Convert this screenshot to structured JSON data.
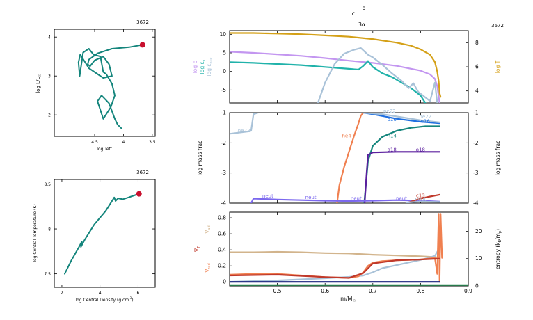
{
  "header": {
    "model_number": "3672",
    "c_label": "c",
    "o_label": "o",
    "zone_label": "3α"
  },
  "colors": {
    "teal": "#14857c",
    "marker": "#c8102e",
    "lavender": "#c396f0",
    "sea": "#20b2aa",
    "lightblue": "#a9c2d8",
    "gold": "#d4a017",
    "blue": "#1f6fe0",
    "purple": "#5b1f9e",
    "violet": "#7b68ee",
    "salmon": "#f08050",
    "red": "#c0392b",
    "tan": "#d2b48c",
    "navy": "#1a237e",
    "green": "#2e8b57"
  },
  "chart_data": [
    {
      "id": "hr",
      "type": "line",
      "title": "3672",
      "xlabel": "log Teff",
      "ylabel": "log L/Lsun",
      "xlim": [
        5.2,
        3.45
      ],
      "ylim": [
        1.45,
        4.2
      ],
      "xticks": [
        4.5,
        4,
        3.5
      ],
      "xtick_labels": [
        "4.5",
        "4",
        "3.5"
      ],
      "yticks": [
        2,
        3,
        4
      ],
      "ytick_labels": [
        "2",
        "3",
        "4"
      ],
      "series": [
        {
          "color": "teal",
          "x": [
            3.67,
            3.9,
            4.2,
            4.45,
            4.6,
            4.62,
            4.58,
            4.5,
            4.35,
            4.25,
            4.2,
            4.35,
            4.6,
            4.75,
            4.78,
            4.76,
            4.7,
            4.6,
            4.52,
            4.4,
            4.35,
            4.3,
            4.2,
            4.15,
            4.22,
            4.35,
            4.45,
            4.38,
            4.25,
            4.15,
            4.1,
            4.03
          ],
          "y": [
            3.8,
            3.74,
            3.7,
            3.58,
            3.42,
            3.3,
            3.25,
            3.4,
            3.5,
            3.3,
            3.0,
            2.95,
            3.2,
            3.55,
            3.35,
            3.0,
            3.6,
            3.7,
            3.55,
            3.5,
            3.1,
            3.05,
            2.8,
            2.5,
            2.2,
            1.9,
            2.35,
            2.5,
            2.3,
            1.9,
            1.75,
            1.65
          ]
        }
      ],
      "marker": {
        "x": 3.67,
        "y": 3.8
      }
    },
    {
      "id": "central",
      "type": "line",
      "title": "3672",
      "xlabel": "log Central Density (g cm-3)",
      "ylabel": "log Central Temperature (K)",
      "xlim": [
        1.6,
        6.9
      ],
      "ylim": [
        7.35,
        8.55
      ],
      "xticks": [
        2,
        4,
        6
      ],
      "xtick_labels": [
        "2",
        "4",
        "6"
      ],
      "yticks": [
        7.5,
        8,
        8.5
      ],
      "ytick_labels": [
        "7.5",
        "8",
        "8.5"
      ],
      "series": [
        {
          "color": "teal",
          "x": [
            2.15,
            2.5,
            2.9,
            3.05,
            3.0,
            3.2,
            3.7,
            4.3,
            4.6,
            4.75,
            4.82,
            4.95,
            5.2,
            5.5,
            5.9,
            6.05
          ],
          "y": [
            7.5,
            7.65,
            7.8,
            7.86,
            7.8,
            7.88,
            8.05,
            8.2,
            8.3,
            8.35,
            8.31,
            8.34,
            8.33,
            8.35,
            8.38,
            8.39
          ]
        }
      ],
      "marker": {
        "x": 6.05,
        "y": 8.39
      }
    },
    {
      "id": "profile-top",
      "type": "line",
      "title": "3672",
      "xlim": [
        0.4,
        0.9
      ],
      "ylim": [
        -8.5,
        11
      ],
      "yticks": [
        -5,
        0,
        5,
        10
      ],
      "ytick_labels": [
        "-5",
        "0",
        "5",
        "10"
      ],
      "ylabel_left": [
        "log ρ",
        "log εν",
        "log εnuc"
      ],
      "ylabel_right": "log T",
      "ylim_right": [
        3,
        9
      ],
      "yticks_right": [
        4,
        6,
        8
      ],
      "ytick_labels_right": [
        "4",
        "6",
        "8"
      ],
      "series": [
        {
          "name": "log ρ",
          "color": "lavender",
          "x": [
            0.4,
            0.45,
            0.5,
            0.55,
            0.6,
            0.65,
            0.7,
            0.75,
            0.8,
            0.82,
            0.83,
            0.835,
            0.84
          ],
          "y": [
            5.3,
            5.0,
            4.6,
            4.2,
            3.6,
            2.9,
            2.3,
            1.5,
            0.2,
            -0.8,
            -2.0,
            -4.0,
            -8.5
          ]
        },
        {
          "name": "log εν",
          "color": "sea",
          "x": [
            0.4,
            0.45,
            0.5,
            0.55,
            0.6,
            0.65,
            0.67,
            0.68,
            0.69,
            0.7,
            0.72,
            0.74,
            0.76,
            0.78,
            0.8,
            0.81
          ],
          "y": [
            2.5,
            2.3,
            2.0,
            1.7,
            1.2,
            0.7,
            0.5,
            1.5,
            2.8,
            1.2,
            -0.5,
            -1.5,
            -3.0,
            -4.5,
            -6.5,
            -8.5
          ]
        },
        {
          "name": "log εnuc",
          "color": "lightblue",
          "x": [
            0.585,
            0.6,
            0.62,
            0.64,
            0.66,
            0.675,
            0.69,
            0.7,
            0.72,
            0.74,
            0.76,
            0.775,
            0.785,
            0.795,
            0.81,
            0.82,
            0.83,
            0.835
          ],
          "y": [
            -8.5,
            -3.0,
            2.0,
            4.8,
            5.8,
            6.3,
            4.5,
            3.8,
            1.8,
            -0.5,
            -2.5,
            -4.5,
            -3.2,
            -5.5,
            -7.0,
            -8.0,
            -3.0,
            -8.5
          ]
        },
        {
          "name": "log T",
          "axis": "right",
          "color": "gold",
          "x": [
            0.4,
            0.45,
            0.5,
            0.55,
            0.6,
            0.65,
            0.7,
            0.75,
            0.78,
            0.8,
            0.82,
            0.83,
            0.835,
            0.838,
            0.84,
            0.842
          ],
          "y": [
            8.8,
            8.8,
            8.75,
            8.7,
            8.6,
            8.5,
            8.3,
            8.0,
            7.75,
            7.45,
            7.0,
            6.4,
            5.6,
            4.8,
            3.8,
            3.5
          ]
        }
      ]
    },
    {
      "id": "profile-mid",
      "type": "line",
      "xlim": [
        0.4,
        0.9
      ],
      "ylim": [
        -4,
        -1
      ],
      "yticks": [
        -4,
        -3,
        -2,
        -1
      ],
      "ytick_labels": [
        "-4",
        "-3",
        "-2",
        "-1"
      ],
      "ylabel_left": "log mass frac",
      "ylabel_right": "log mass frac",
      "series": [
        {
          "name": "ne22",
          "color": "lightblue",
          "x": [
            0.4,
            0.44,
            0.445,
            0.45,
            0.46
          ],
          "y": [
            -1.7,
            -1.62,
            -1.6,
            -1.05,
            -1.0
          ]
        },
        {
          "name": "he4",
          "color": "salmon",
          "x": [
            0.625,
            0.63,
            0.64,
            0.65,
            0.66,
            0.67,
            0.675,
            0.68
          ],
          "y": [
            -4.0,
            -3.4,
            -2.8,
            -2.3,
            -1.8,
            -1.35,
            -1.1,
            -1.0
          ]
        },
        {
          "name": "n14",
          "color": "teal",
          "x": [
            0.682,
            0.69,
            0.7,
            0.72,
            0.75,
            0.78,
            0.81,
            0.84
          ],
          "y": [
            -4.0,
            -2.6,
            -2.1,
            -1.8,
            -1.6,
            -1.5,
            -1.45,
            -1.45
          ]
        },
        {
          "name": "o18",
          "color": "purple",
          "x": [
            0.683,
            0.687,
            0.69,
            0.7,
            0.75,
            0.84
          ],
          "y": [
            -4.0,
            -3.0,
            -2.4,
            -2.32,
            -2.3,
            -2.3
          ]
        },
        {
          "name": "o16",
          "color": "blue",
          "x": [
            0.68,
            0.7,
            0.75,
            0.8,
            0.84
          ],
          "y": [
            -1.0,
            -1.05,
            -1.2,
            -1.3,
            -1.35
          ]
        },
        {
          "name": "ne22",
          "color": "lightblue",
          "x": [
            0.68,
            0.72,
            0.76,
            0.8,
            0.84
          ],
          "y": [
            -1.0,
            -1.05,
            -1.15,
            -1.25,
            -1.32
          ]
        },
        {
          "name": "neut",
          "color": "violet",
          "x": [
            0.445,
            0.45,
            0.5,
            0.55,
            0.6,
            0.65,
            0.7,
            0.75,
            0.8,
            0.84
          ],
          "y": [
            -4.0,
            -3.85,
            -3.88,
            -3.9,
            -3.92,
            -3.93,
            -3.92,
            -3.9,
            -3.92,
            -3.95
          ]
        },
        {
          "name": "c13",
          "color": "red",
          "x": [
            0.77,
            0.8,
            0.82,
            0.84
          ],
          "y": [
            -4.0,
            -3.85,
            -3.78,
            -3.72
          ]
        },
        {
          "name": "neut",
          "color": "lightblue",
          "x": [
            0.77,
            0.8,
            0.84
          ],
          "y": [
            -3.98,
            -3.95,
            -3.96
          ]
        }
      ],
      "labels": [
        {
          "text": "ne22",
          "x": 0.43,
          "y": -1.65,
          "color": "lightblue"
        },
        {
          "text": "ne22",
          "x": 0.735,
          "y": -1.0,
          "color": "lightblue"
        },
        {
          "text": "ne22",
          "x": 0.81,
          "y": -1.18,
          "color": "lightblue"
        },
        {
          "text": "o16",
          "x": 0.74,
          "y": -1.28,
          "color": "blue"
        },
        {
          "text": "o16",
          "x": 0.81,
          "y": -1.33,
          "color": "blue"
        },
        {
          "text": "he4",
          "x": 0.645,
          "y": -1.82,
          "color": "salmon"
        },
        {
          "text": "n14",
          "x": 0.74,
          "y": -1.82,
          "color": "teal"
        },
        {
          "text": "o18",
          "x": 0.74,
          "y": -2.28,
          "color": "purple"
        },
        {
          "text": "o18",
          "x": 0.8,
          "y": -2.28,
          "color": "purple"
        },
        {
          "text": "neut",
          "x": 0.48,
          "y": -3.82,
          "color": "violet"
        },
        {
          "text": "neut",
          "x": 0.57,
          "y": -3.86,
          "color": "violet"
        },
        {
          "text": "neut",
          "x": 0.665,
          "y": -3.9,
          "color": "violet"
        },
        {
          "text": "neut",
          "x": 0.76,
          "y": -3.9,
          "color": "violet"
        },
        {
          "text": "c13",
          "x": 0.8,
          "y": -3.8,
          "color": "red"
        },
        {
          "text": "neut",
          "x": 0.8,
          "y": -3.92,
          "color": "lightblue"
        }
      ]
    },
    {
      "id": "profile-bot",
      "type": "line",
      "xlim": [
        0.4,
        0.9
      ],
      "ylim": [
        -0.05,
        0.87
      ],
      "yticks": [
        0,
        0.2,
        0.4,
        0.6,
        0.8
      ],
      "ytick_labels": [
        "0",
        "0.2",
        "0.4",
        "0.6",
        "0.8"
      ],
      "xticks": [
        0.5,
        0.6,
        0.7,
        0.8,
        0.9
      ],
      "xtick_labels": [
        "0.5",
        "0.6",
        "0.7",
        "0.8",
        "0.9"
      ],
      "xlabel": "m/Msun",
      "ylabel_left": [
        "∇ad",
        "∇T",
        "∇rad"
      ],
      "ylabel_right": "entropy (kB/mp)",
      "ylim_right": [
        0,
        27
      ],
      "yticks_right": [
        0,
        10,
        20
      ],
      "ytick_labels_right": [
        "0",
        "10",
        "20"
      ],
      "series": [
        {
          "name": "∇ad",
          "color": "tan",
          "x": [
            0.4,
            0.45,
            0.5,
            0.55,
            0.6,
            0.65,
            0.7,
            0.75,
            0.8,
            0.83,
            0.84
          ],
          "y": [
            0.37,
            0.37,
            0.375,
            0.37,
            0.36,
            0.355,
            0.34,
            0.33,
            0.32,
            0.31,
            0.3
          ]
        },
        {
          "name": "entropy",
          "axis": "right",
          "color": "lightblue",
          "x": [
            0.4,
            0.5,
            0.6,
            0.65,
            0.68,
            0.7,
            0.72,
            0.76,
            0.8,
            0.83,
            0.84,
            0.842
          ],
          "y": [
            1.5,
            2.0,
            2.8,
            3.3,
            3.8,
            5.0,
            6.5,
            8.0,
            9.5,
            11.0,
            14.0,
            22.0
          ]
        },
        {
          "name": "∇rad",
          "color": "salmon",
          "x": [
            0.4,
            0.45,
            0.5,
            0.55,
            0.6,
            0.65,
            0.67,
            0.68,
            0.69,
            0.7,
            0.72,
            0.75,
            0.8,
            0.83,
            0.835,
            0.838,
            0.84,
            0.842,
            0.845
          ],
          "y": [
            0.09,
            0.1,
            0.1,
            0.08,
            0.06,
            0.05,
            0.07,
            0.12,
            0.2,
            0.24,
            0.26,
            0.27,
            0.28,
            0.3,
            0.1,
            0.85,
            0.0,
            0.85,
            0.3
          ]
        },
        {
          "name": "∇T",
          "color": "red",
          "x": [
            0.4,
            0.5,
            0.6,
            0.65,
            0.68,
            0.7,
            0.75,
            0.8,
            0.84
          ],
          "y": [
            0.08,
            0.09,
            0.06,
            0.05,
            0.11,
            0.23,
            0.27,
            0.28,
            0.29
          ]
        },
        {
          "name": "baseline",
          "color": "navy",
          "x": [
            0.4,
            0.84
          ],
          "y": [
            0.0,
            0.0
          ]
        },
        {
          "name": "baseline2",
          "color": "green",
          "x": [
            0.4,
            0.9
          ],
          "y": [
            -0.04,
            -0.04
          ]
        }
      ]
    }
  ]
}
